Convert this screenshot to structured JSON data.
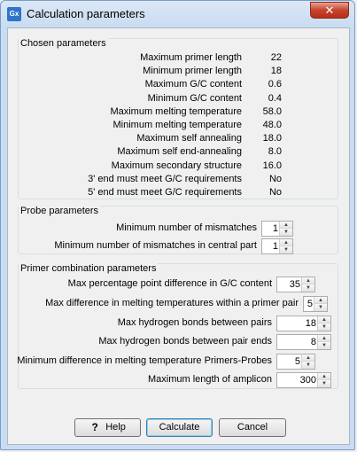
{
  "window": {
    "title": "Calculation parameters",
    "app_icon_text": "Gx"
  },
  "chosen": {
    "title": "Chosen parameters",
    "rows": [
      {
        "label": "Maximum primer length",
        "value": "22"
      },
      {
        "label": "Minimum primer length",
        "value": "18"
      },
      {
        "label": "Maximum G/C content",
        "value": "0.6"
      },
      {
        "label": "Minimum G/C content",
        "value": "0.4"
      },
      {
        "label": "Maximum melting temperature",
        "value": "58.0"
      },
      {
        "label": "Minimum melting temperature",
        "value": "48.0"
      },
      {
        "label": "Maximum self annealing",
        "value": "18.0"
      },
      {
        "label": "Maximum self end-annealing",
        "value": "8.0"
      },
      {
        "label": "Maximum secondary structure",
        "value": "16.0"
      },
      {
        "label": "3' end must meet G/C requirements",
        "value": "No"
      },
      {
        "label": "5' end must meet G/C requirements",
        "value": "No"
      }
    ]
  },
  "probe": {
    "title": "Probe parameters",
    "rows": [
      {
        "label": "Minimum number of mismatches",
        "value": "1"
      },
      {
        "label": "Minimum number of mismatches in central part",
        "value": "1"
      }
    ]
  },
  "primer": {
    "title": "Primer combination parameters",
    "rows": [
      {
        "label": "Max percentage point difference in G/C content",
        "value": "35"
      },
      {
        "label": "Max difference in melting temperatures within a primer pair",
        "value": "5"
      },
      {
        "label": "Max hydrogen bonds between pairs",
        "value": "18"
      },
      {
        "label": "Max hydrogen bonds between pair ends",
        "value": "8"
      },
      {
        "label": "Minimum difference in melting temperature Primers-Probes",
        "value": "5"
      },
      {
        "label": "Maximum length of amplicon",
        "value": "300"
      }
    ]
  },
  "buttons": {
    "help": "Help",
    "help_glyph": "?",
    "calculate": "Calculate",
    "cancel": "Cancel"
  },
  "icons": {
    "close": "close-icon",
    "spin_up": "spin-up-icon",
    "spin_down": "spin-down-icon"
  }
}
